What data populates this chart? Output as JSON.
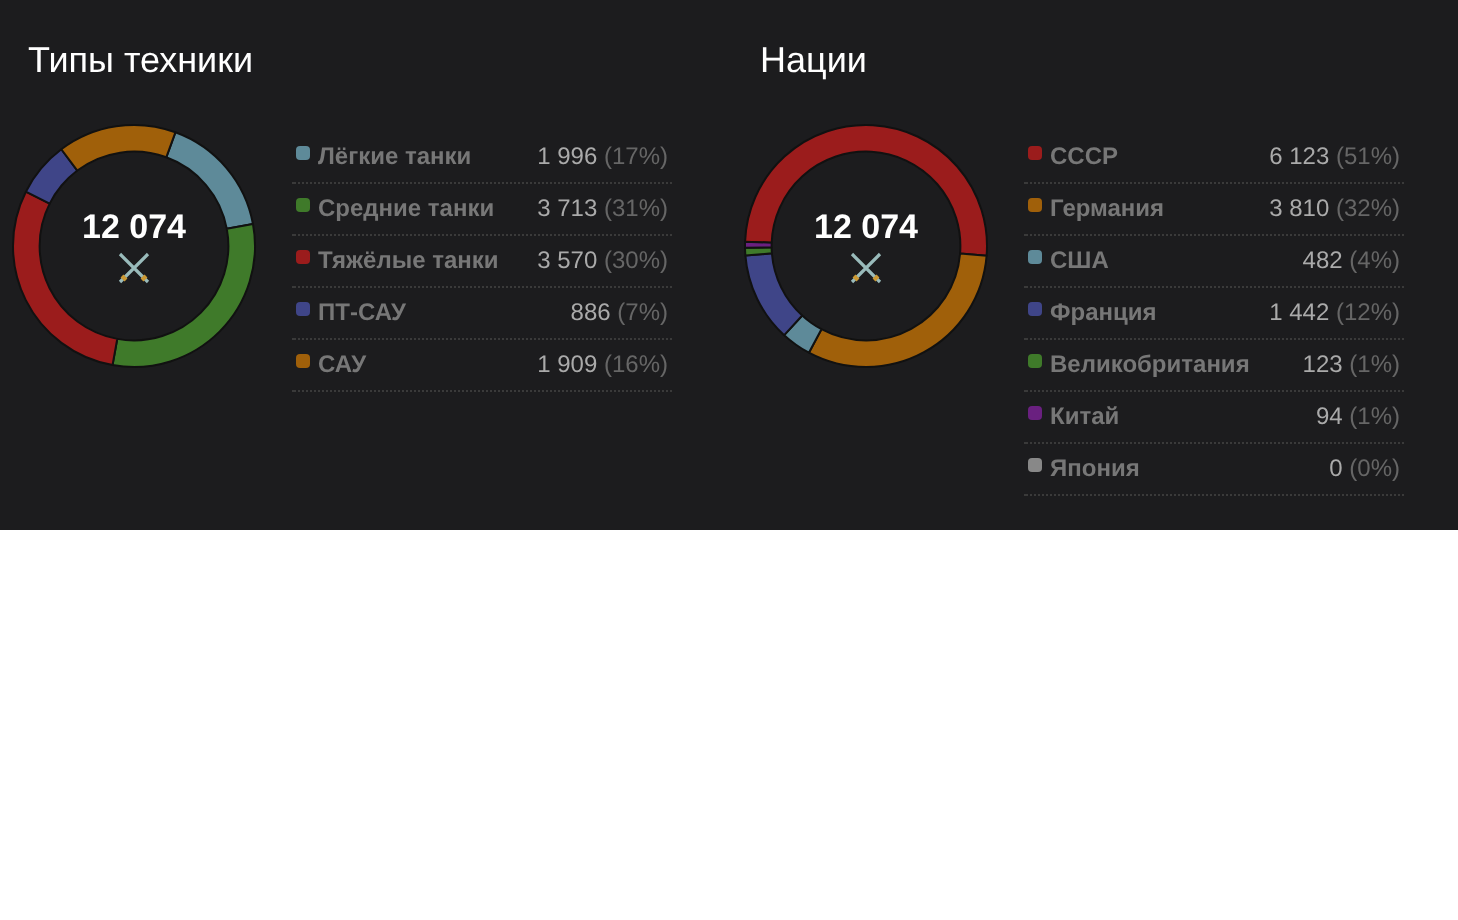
{
  "chart_data": [
    {
      "type": "donut",
      "title": "Типы техники",
      "categories": [
        "Лёгкие танки",
        "Средние танки",
        "Тяжёлые танки",
        "ПТ-САУ",
        "САУ"
      ],
      "values": [
        1996,
        3713,
        3570,
        886,
        1909
      ],
      "colors": [
        "#5e8a99",
        "#3f7a2a",
        "#9b1c1c",
        "#3f4588",
        "#a0600a"
      ],
      "value_labels": [
        "1 996 (17%)",
        "3 713 (31%)",
        "3 570 (30%)",
        "886 (7%)",
        "1 909 (16%)"
      ],
      "annotations": [
        "12 074"
      ],
      "legend": "right"
    },
    {
      "type": "donut",
      "title": "Нации",
      "categories": [
        "СССР",
        "Германия",
        "США",
        "Франция",
        "Великобритания",
        "Китай",
        "Япония"
      ],
      "values": [
        6123,
        3810,
        482,
        1442,
        123,
        94,
        0
      ],
      "colors": [
        "#9b1c1c",
        "#a0600a",
        "#5e8a99",
        "#3f4588",
        "#3f7a2a",
        "#6a2080",
        "#888888"
      ],
      "value_labels": [
        "6 123 (51%)",
        "3 810 (32%)",
        "482 (4%)",
        "1 442 (12%)",
        "123 (1%)",
        "94 (1%)",
        "0 (0%)"
      ],
      "annotations": [
        "12 074"
      ],
      "legend": "right"
    }
  ]
}
